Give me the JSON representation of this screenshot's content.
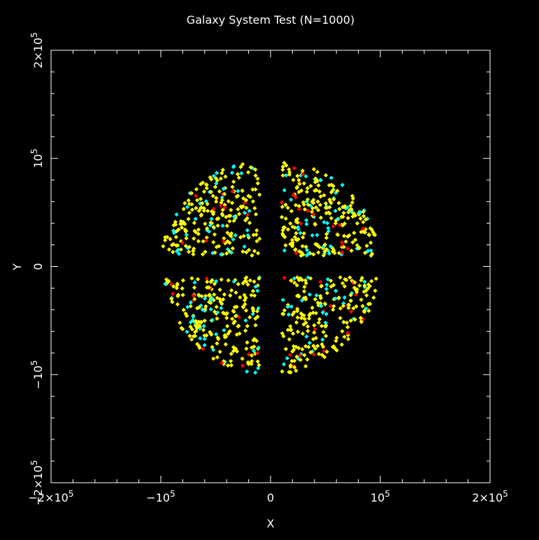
{
  "chart_data": {
    "type": "scatter",
    "title": "Galaxy System Test (N=1000)",
    "xlabel": "X",
    "ylabel": "Y",
    "xlim": [
      -200000,
      200000
    ],
    "ylim": [
      -200000,
      200000
    ],
    "x_ticks": [
      -200000,
      -100000,
      0,
      100000,
      200000
    ],
    "y_ticks": [
      -200000,
      -100000,
      0,
      100000,
      200000
    ],
    "x_tick_labels": [
      "−2×10",
      "−10",
      "0",
      "10",
      "2×10"
    ],
    "y_tick_labels": [
      "−2×10",
      "−10",
      "0",
      "10",
      "2×10"
    ],
    "tick_exponent": "5",
    "grid": false,
    "background": "#000000",
    "series_colors": [
      "#ffff00",
      "#00ffff",
      "#ff0000"
    ],
    "series": [
      {
        "color": "#ffff00",
        "count": 760
      },
      {
        "color": "#00ffff",
        "count": 180
      },
      {
        "color": "#ff0000",
        "count": 60
      }
    ],
    "distribution": {
      "shape": "disk",
      "radius": 100000,
      "gap_halfwidth_x": 10000,
      "gap_halfwidth_y": 10000
    }
  }
}
